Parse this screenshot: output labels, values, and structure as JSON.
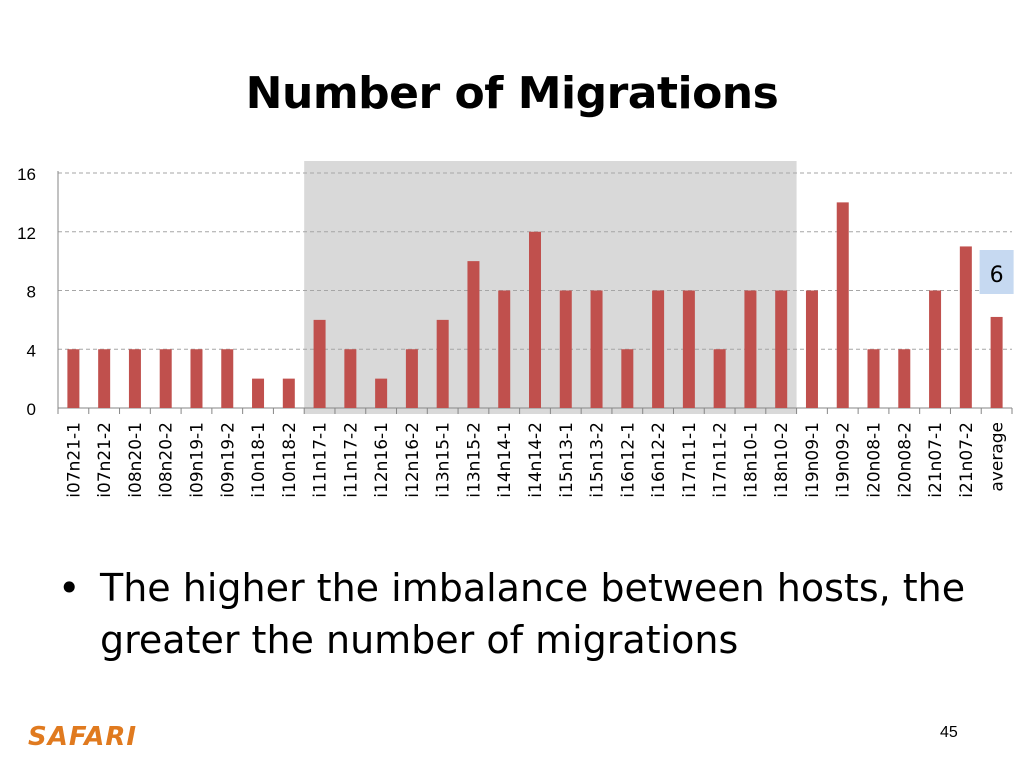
{
  "slide": {
    "title": "Number of Migrations",
    "bullet_marker": "•",
    "bullet": "The higher the imbalance between hosts, the greater the number of migrations",
    "logo": "SAFARI",
    "page_number": "45"
  },
  "chart_data": {
    "type": "bar",
    "title": "",
    "xlabel": "",
    "ylabel": "",
    "ylim": [
      0,
      16
    ],
    "y_ticks": [
      0,
      4,
      8,
      12,
      16
    ],
    "grid": true,
    "categories": [
      "i07n21-1",
      "i07n21-2",
      "i08n20-1",
      "i08n20-2",
      "i09n19-1",
      "i09n19-2",
      "i10n18-1",
      "i10n18-2",
      "i11n17-1",
      "i11n17-2",
      "i12n16-1",
      "i12n16-2",
      "i13n15-1",
      "i13n15-2",
      "i14n14-1",
      "i14n14-2",
      "i15n13-1",
      "i15n13-2",
      "i16n12-1",
      "i16n12-2",
      "i17n11-1",
      "i17n11-2",
      "i18n10-1",
      "i18n10-2",
      "i19n09-1",
      "i19n09-2",
      "i20n08-1",
      "i20n08-2",
      "i21n07-1",
      "i21n07-2",
      "average"
    ],
    "series": [
      {
        "values": [
          4,
          4,
          4,
          4,
          4,
          4,
          2,
          2,
          6,
          4,
          2,
          4,
          6,
          10,
          8,
          12,
          8,
          8,
          4,
          8,
          8,
          4,
          8,
          8,
          8,
          14,
          4,
          4,
          8,
          11,
          6.2
        ]
      }
    ],
    "highlight_range": [
      "i11n17-1",
      "i18n10-2"
    ],
    "callout": {
      "category": "average",
      "text": "6"
    },
    "colors": {
      "bar": "#c0504d",
      "highlight": "#d9d9d9",
      "grid": "#a6a6a6",
      "callout_bg": "#c6d9f1"
    }
  }
}
